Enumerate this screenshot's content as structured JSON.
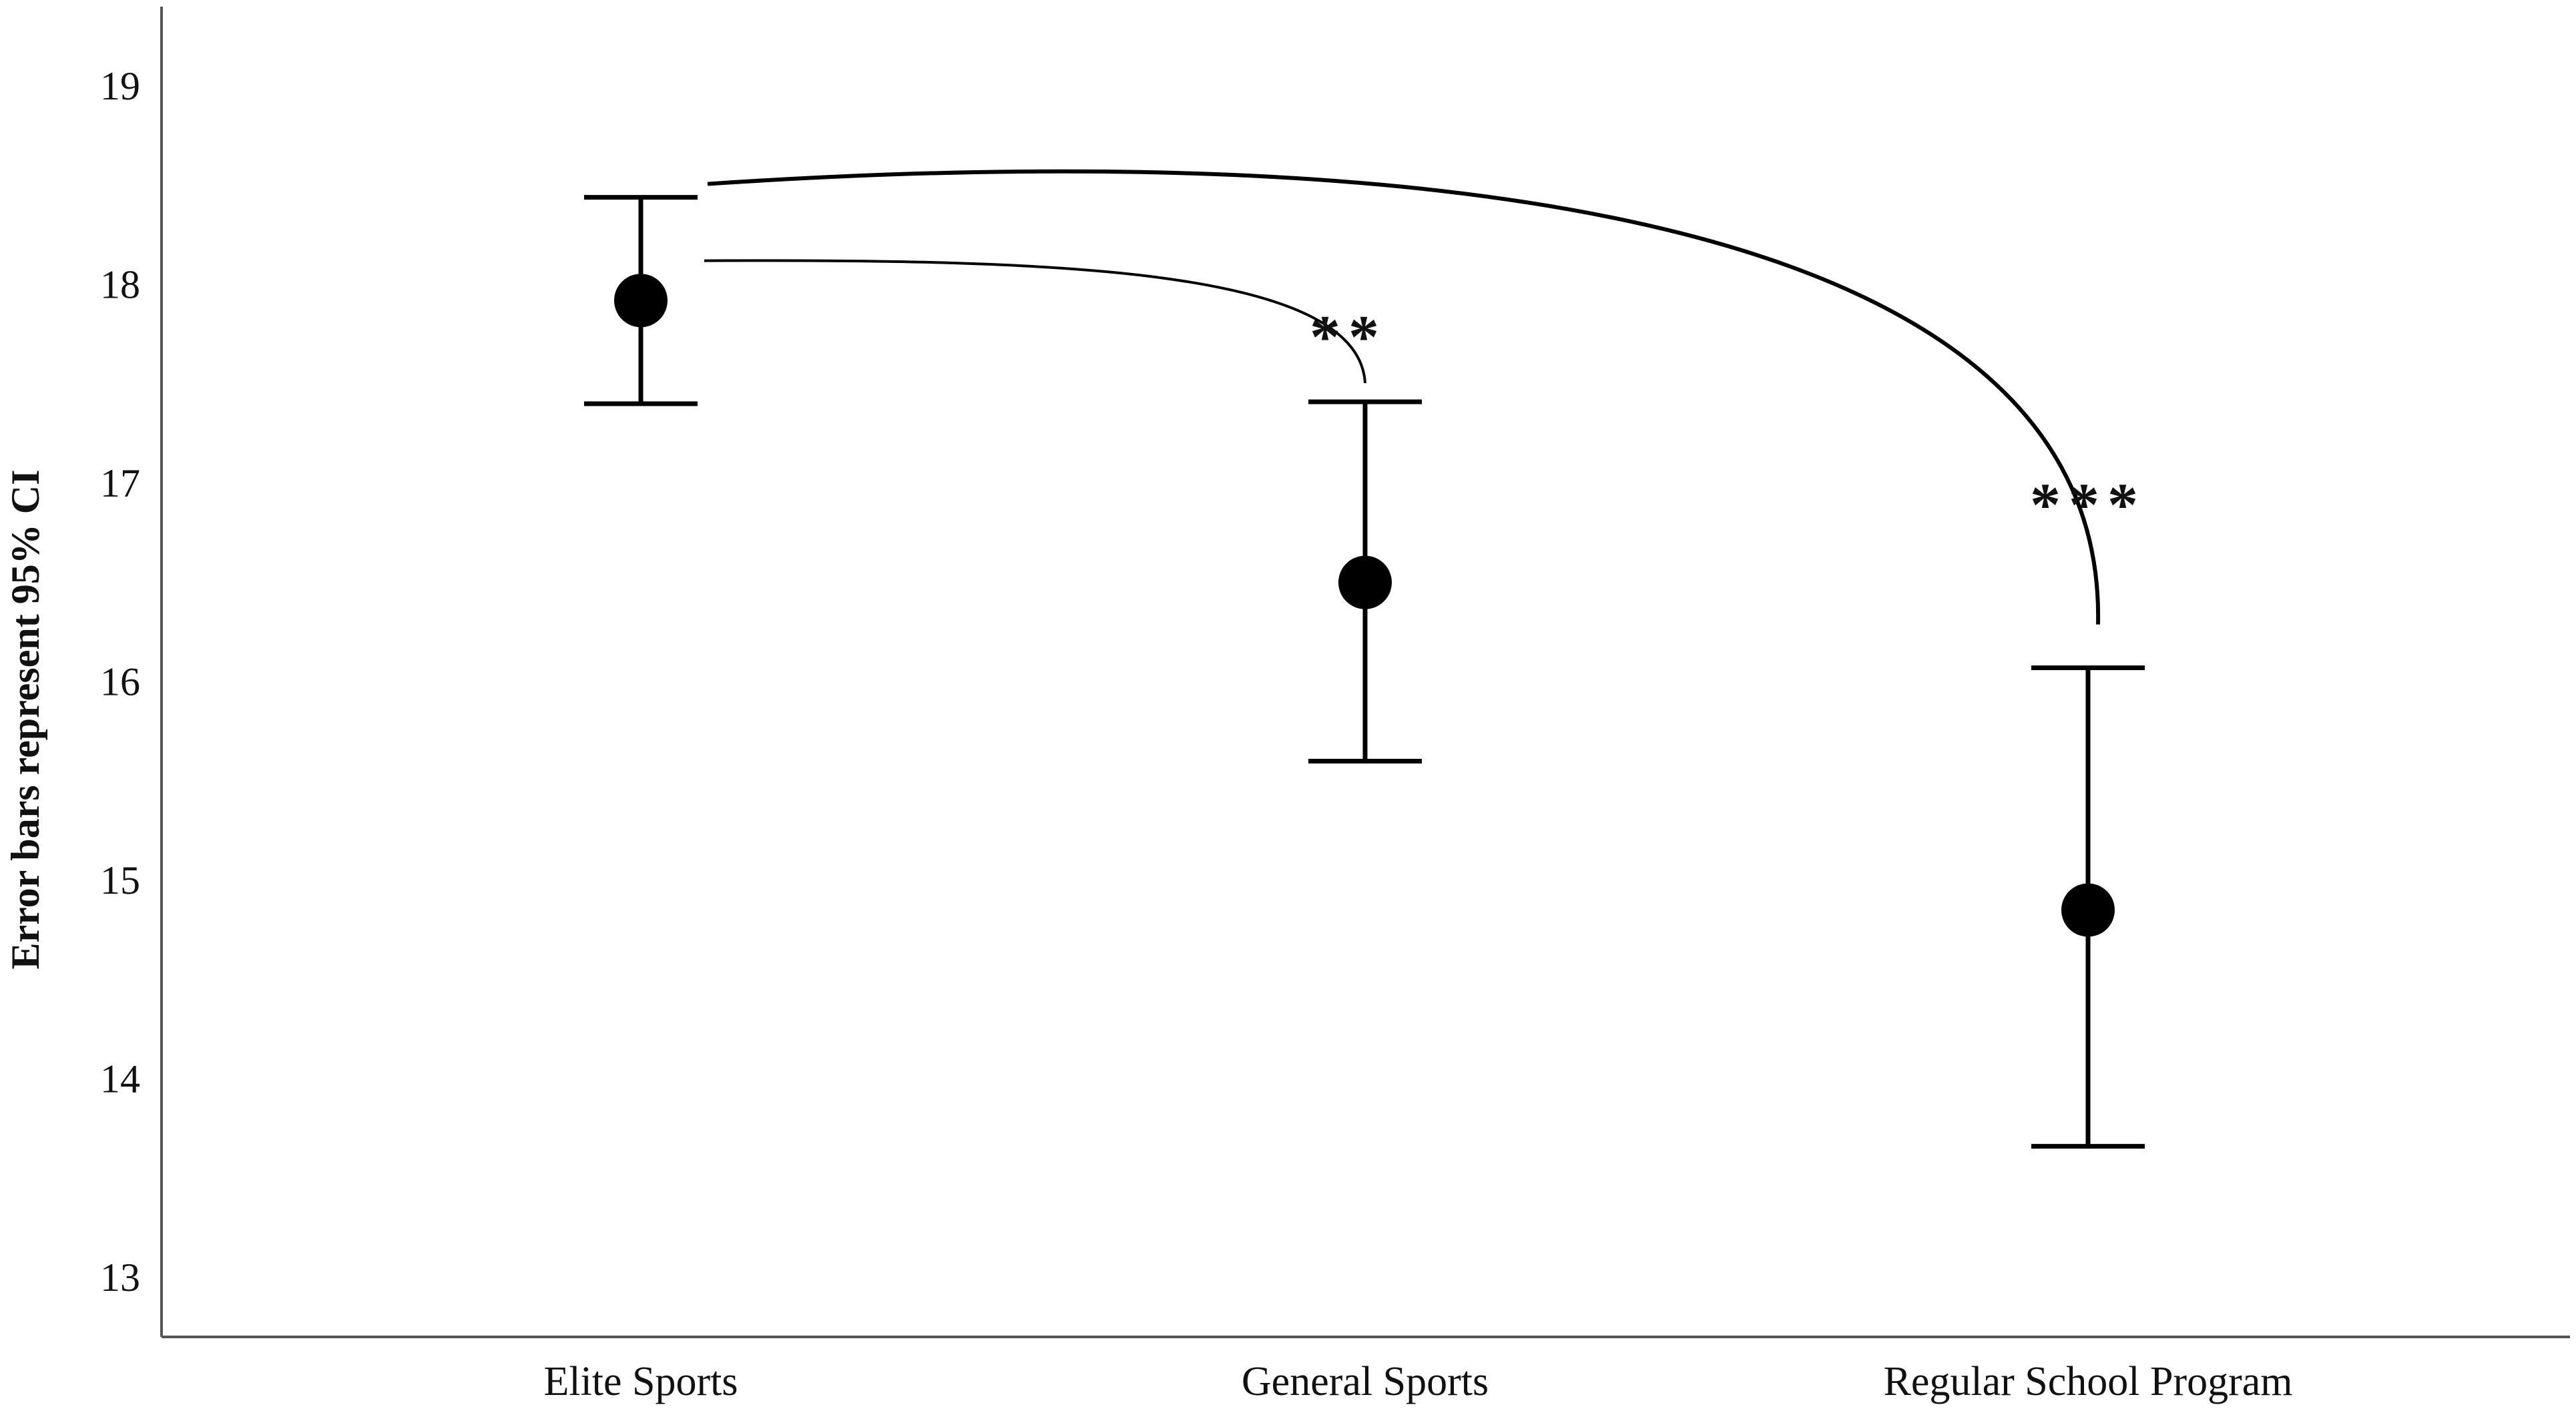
{
  "chart_data": {
    "type": "scatter",
    "title": "",
    "xlabel": "",
    "ylabel": "Error bars represent 95% CI",
    "categories": [
      "Elite Sports",
      "General Sports",
      "Regular School Program"
    ],
    "means": [
      17.92,
      16.5,
      14.85
    ],
    "ci_lower": [
      17.4,
      15.6,
      13.66
    ],
    "ci_upper": [
      18.44,
      17.41,
      16.07
    ],
    "ylim": [
      12.7,
      19.4
    ],
    "yticks": [
      "13",
      "14",
      "15",
      "16",
      "17",
      "18",
      "19"
    ],
    "grid": false,
    "legend": "none",
    "comparisons": [
      {
        "from": "Elite Sports",
        "to": "General Sports",
        "label": "**"
      },
      {
        "from": "Elite Sports",
        "to": "Regular School Program",
        "label": "***"
      }
    ],
    "colors": {
      "marker": "#000000",
      "axis": "#555555"
    }
  }
}
